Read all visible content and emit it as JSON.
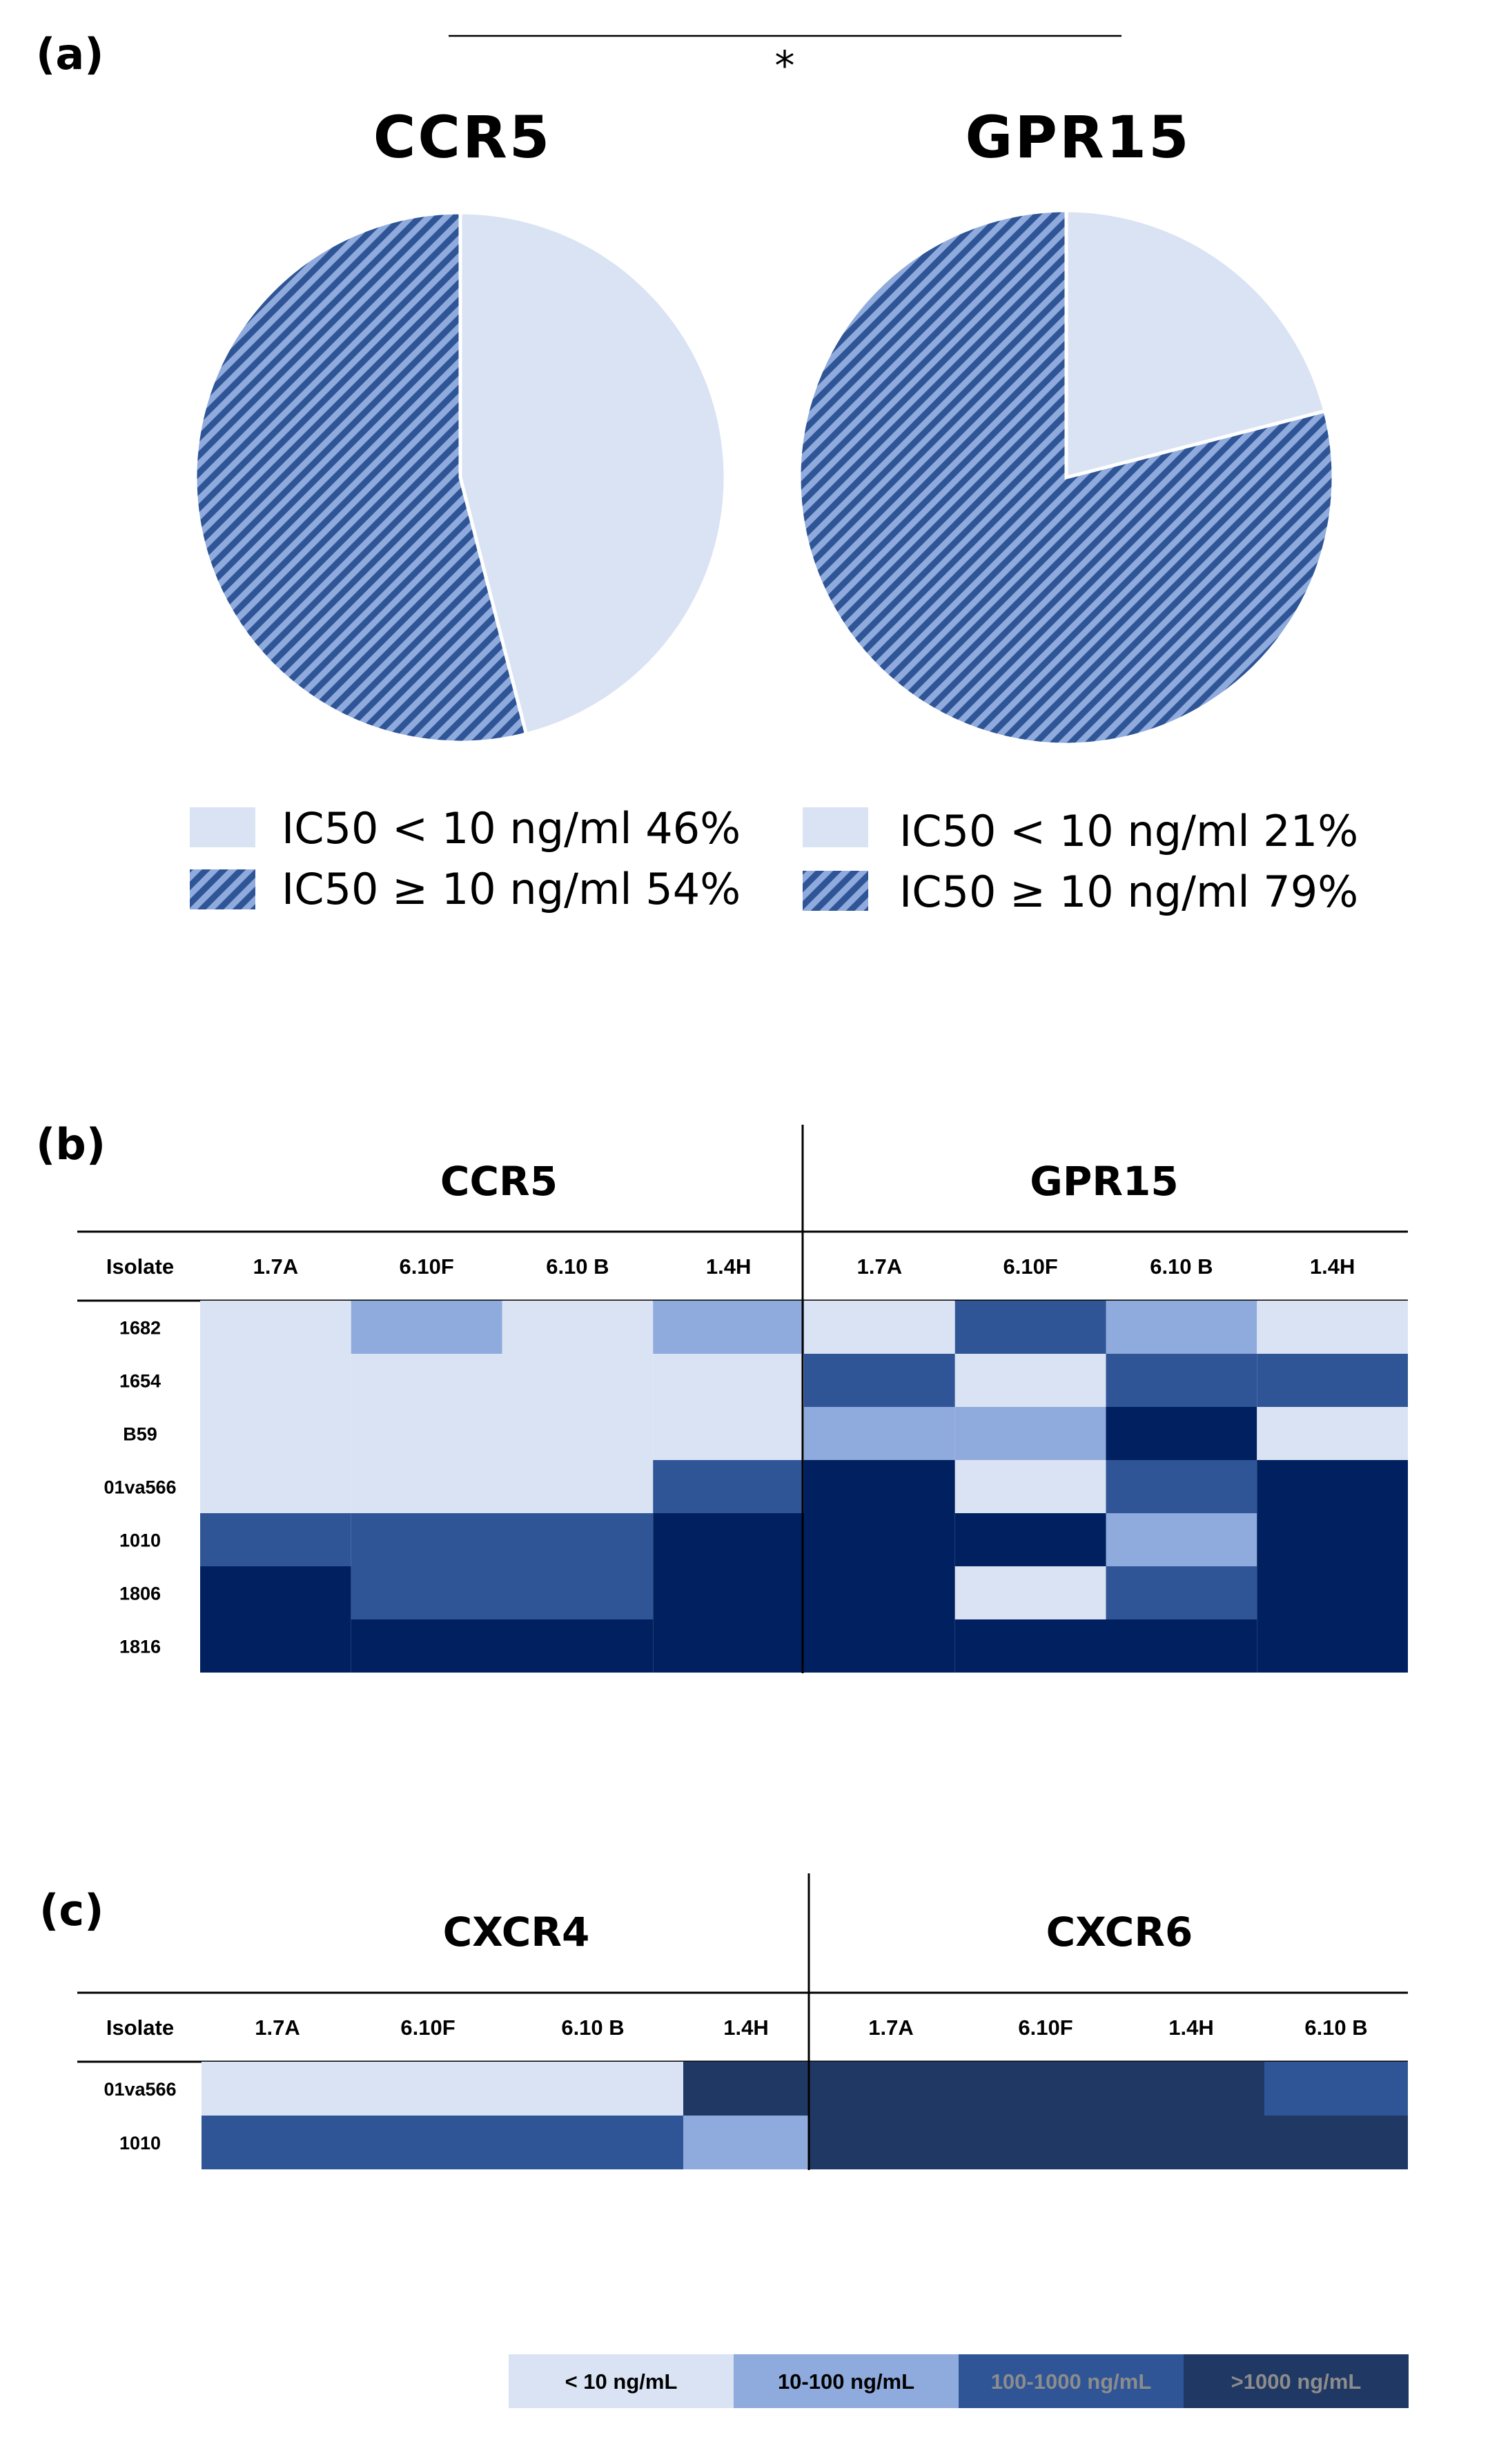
{
  "panels": {
    "a": "(a)",
    "b": "(b)",
    "c": "(c)"
  },
  "significance": "*",
  "colors": {
    "lt10": "#dae3f3",
    "10to100": "#8faadc",
    "100to1000": "#2f5597",
    "gt1000": "#002060",
    "gt1000_c": "#203864",
    "key_dark_text": "#8c8c8c",
    "hatch_light": "#8faadc",
    "hatch_dark": "#2f5597"
  },
  "chart_data": [
    {
      "type": "pie",
      "title": "CCR5",
      "slices": [
        {
          "label": "IC50 < 10 ng/ml",
          "value": 46,
          "legend": "IC50 < 10 ng/ml 46%",
          "fill": "solid"
        },
        {
          "label": "IC50 ≥ 10 ng/ml",
          "value": 54,
          "legend": "IC50 ≥ 10 ng/ml 54%",
          "fill": "hatch"
        }
      ]
    },
    {
      "type": "pie",
      "title": "GPR15",
      "slices": [
        {
          "label": "IC50 < 10 ng/ml",
          "value": 21,
          "legend": "IC50 < 10 ng/ml 21%",
          "fill": "solid"
        },
        {
          "label": "IC50 ≥ 10 ng/ml",
          "value": 79,
          "legend": "IC50 ≥ 10 ng/ml 79%",
          "fill": "hatch"
        }
      ]
    },
    {
      "type": "heatmap",
      "panel": "b",
      "row_header": "Isolate",
      "groups": [
        {
          "title": "CCR5",
          "columns": [
            "1.7A",
            "6.10F",
            "6.10 B",
            "1.4H"
          ]
        },
        {
          "title": "GPR15",
          "columns": [
            "1.7A",
            "6.10F",
            "6.10 B",
            "1.4H"
          ]
        }
      ],
      "rows": [
        "1682",
        "1654",
        "B59",
        "01va566",
        "1010",
        "1806",
        "1816"
      ],
      "levels": [
        [
          0,
          1,
          0,
          1,
          0,
          2,
          1,
          0
        ],
        [
          0,
          0,
          0,
          0,
          2,
          0,
          2,
          2
        ],
        [
          0,
          0,
          0,
          0,
          1,
          1,
          3,
          0
        ],
        [
          0,
          0,
          0,
          2,
          3,
          0,
          2,
          3
        ],
        [
          2,
          2,
          2,
          3,
          3,
          3,
          1,
          3
        ],
        [
          3,
          2,
          2,
          3,
          3,
          0,
          2,
          3
        ],
        [
          3,
          3,
          3,
          3,
          3,
          3,
          3,
          3
        ]
      ]
    },
    {
      "type": "heatmap",
      "panel": "c",
      "row_header": "Isolate",
      "groups": [
        {
          "title": "CXCR4",
          "columns": [
            "1.7A",
            "6.10F",
            "6.10 B",
            "1.4H"
          ]
        },
        {
          "title": "CXCR6",
          "columns": [
            "1.7A",
            "6.10F",
            "1.4H",
            "6.10 B"
          ]
        }
      ],
      "rows": [
        "01va566",
        "1010"
      ],
      "levels": [
        [
          0,
          0,
          0,
          3,
          3,
          3,
          3,
          2
        ],
        [
          2,
          2,
          2,
          1,
          3,
          3,
          3,
          3
        ]
      ]
    }
  ],
  "color_key": [
    {
      "label": "< 10 ng/mL"
    },
    {
      "label": "10-100 ng/mL"
    },
    {
      "label": "100-1000 ng/mL"
    },
    {
      "label": ">1000 ng/mL"
    }
  ]
}
